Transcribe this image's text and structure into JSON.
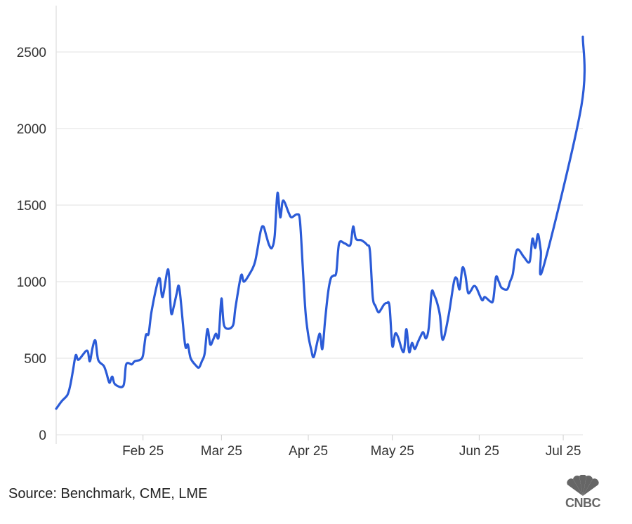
{
  "chart_data": {
    "type": "line",
    "ylim": [
      0,
      2600
    ],
    "yticks": [
      "0",
      "500",
      "1000",
      "1500",
      "2000",
      "2500"
    ],
    "xticks": [
      "Feb 25",
      "Mar 25",
      "Apr 25",
      "May 25",
      "Jun 25",
      "Jul 25"
    ],
    "xlim": [
      "2025-01-01",
      "2025-07-08"
    ],
    "grid": true,
    "series": [
      {
        "color": "#2b5bd7",
        "points": [
          [
            "2025-01-01",
            170
          ],
          [
            "2025-01-03",
            220
          ],
          [
            "2025-01-05",
            260
          ],
          [
            "2025-01-06",
            320
          ],
          [
            "2025-01-07",
            420
          ],
          [
            "2025-01-08",
            520
          ],
          [
            "2025-01-09",
            490
          ],
          [
            "2025-01-12",
            550
          ],
          [
            "2025-01-13",
            480
          ],
          [
            "2025-01-14",
            570
          ],
          [
            "2025-01-15",
            615
          ],
          [
            "2025-01-16",
            490
          ],
          [
            "2025-01-18",
            450
          ],
          [
            "2025-01-19",
            400
          ],
          [
            "2025-01-20",
            340
          ],
          [
            "2025-01-21",
            380
          ],
          [
            "2025-01-22",
            330
          ],
          [
            "2025-01-25",
            320
          ],
          [
            "2025-01-26",
            460
          ],
          [
            "2025-01-28",
            460
          ],
          [
            "2025-01-29",
            480
          ],
          [
            "2025-01-31",
            490
          ],
          [
            "2025-02-01",
            520
          ],
          [
            "2025-02-02",
            650
          ],
          [
            "2025-02-03",
            660
          ],
          [
            "2025-02-04",
            800
          ],
          [
            "2025-02-06",
            980
          ],
          [
            "2025-02-07",
            1020
          ],
          [
            "2025-02-08",
            900
          ],
          [
            "2025-02-10",
            1080
          ],
          [
            "2025-02-11",
            800
          ],
          [
            "2025-02-12",
            840
          ],
          [
            "2025-02-13",
            920
          ],
          [
            "2025-02-14",
            955
          ],
          [
            "2025-02-16",
            590
          ],
          [
            "2025-02-17",
            590
          ],
          [
            "2025-02-18",
            500
          ],
          [
            "2025-02-20",
            450
          ],
          [
            "2025-02-21",
            440
          ],
          [
            "2025-02-22",
            480
          ],
          [
            "2025-02-23",
            530
          ],
          [
            "2025-02-24",
            690
          ],
          [
            "2025-02-25",
            590
          ],
          [
            "2025-02-26",
            620
          ],
          [
            "2025-02-27",
            660
          ],
          [
            "2025-02-28",
            640
          ],
          [
            "2025-03-01",
            890
          ],
          [
            "2025-03-02",
            710
          ],
          [
            "2025-03-05",
            710
          ],
          [
            "2025-03-06",
            830
          ],
          [
            "2025-03-08",
            1040
          ],
          [
            "2025-03-09",
            1000
          ],
          [
            "2025-03-11",
            1050
          ],
          [
            "2025-03-13",
            1130
          ],
          [
            "2025-03-15",
            1330
          ],
          [
            "2025-03-16",
            1360
          ],
          [
            "2025-03-17",
            1300
          ],
          [
            "2025-03-18",
            1240
          ],
          [
            "2025-03-19",
            1220
          ],
          [
            "2025-03-20",
            1300
          ],
          [
            "2025-03-21",
            1580
          ],
          [
            "2025-03-22",
            1420
          ],
          [
            "2025-03-23",
            1530
          ],
          [
            "2025-03-25",
            1450
          ],
          [
            "2025-03-26",
            1420
          ],
          [
            "2025-03-28",
            1440
          ],
          [
            "2025-03-29",
            1400
          ],
          [
            "2025-03-30",
            1100
          ],
          [
            "2025-03-31",
            800
          ],
          [
            "2025-04-01",
            650
          ],
          [
            "2025-04-02",
            560
          ],
          [
            "2025-04-03",
            510
          ],
          [
            "2025-04-05",
            660
          ],
          [
            "2025-04-06",
            560
          ],
          [
            "2025-04-07",
            750
          ],
          [
            "2025-04-08",
            920
          ],
          [
            "2025-04-09",
            1020
          ],
          [
            "2025-04-10",
            1040
          ],
          [
            "2025-04-11",
            1060
          ],
          [
            "2025-04-12",
            1250
          ],
          [
            "2025-04-14",
            1250
          ],
          [
            "2025-04-16",
            1240
          ],
          [
            "2025-04-17",
            1360
          ],
          [
            "2025-04-18",
            1280
          ],
          [
            "2025-04-20",
            1270
          ],
          [
            "2025-04-22",
            1240
          ],
          [
            "2025-04-23",
            1200
          ],
          [
            "2025-04-24",
            900
          ],
          [
            "2025-04-25",
            840
          ],
          [
            "2025-04-26",
            800
          ],
          [
            "2025-04-27",
            820
          ],
          [
            "2025-04-28",
            850
          ],
          [
            "2025-04-29",
            860
          ],
          [
            "2025-04-30",
            840
          ],
          [
            "2025-05-01",
            580
          ],
          [
            "2025-05-02",
            660
          ],
          [
            "2025-05-03",
            640
          ],
          [
            "2025-05-05",
            540
          ],
          [
            "2025-05-06",
            690
          ],
          [
            "2025-05-07",
            540
          ],
          [
            "2025-05-08",
            600
          ],
          [
            "2025-05-09",
            560
          ],
          [
            "2025-05-10",
            600
          ],
          [
            "2025-05-11",
            640
          ],
          [
            "2025-05-12",
            670
          ],
          [
            "2025-05-13",
            630
          ],
          [
            "2025-05-14",
            700
          ],
          [
            "2025-05-15",
            930
          ],
          [
            "2025-05-16",
            910
          ],
          [
            "2025-05-17",
            860
          ],
          [
            "2025-05-18",
            780
          ],
          [
            "2025-05-19",
            620
          ],
          [
            "2025-05-21",
            770
          ],
          [
            "2025-05-23",
            1000
          ],
          [
            "2025-05-24",
            1020
          ],
          [
            "2025-05-25",
            950
          ],
          [
            "2025-05-26",
            1090
          ],
          [
            "2025-05-27",
            1050
          ],
          [
            "2025-05-28",
            930
          ],
          [
            "2025-05-29",
            940
          ],
          [
            "2025-05-30",
            970
          ],
          [
            "2025-05-31",
            960
          ],
          [
            "2025-06-02",
            880
          ],
          [
            "2025-06-03",
            900
          ],
          [
            "2025-06-05",
            870
          ],
          [
            "2025-06-06",
            880
          ],
          [
            "2025-06-07",
            1030
          ],
          [
            "2025-06-08",
            1000
          ],
          [
            "2025-06-09",
            960
          ],
          [
            "2025-06-11",
            950
          ],
          [
            "2025-06-12",
            1000
          ],
          [
            "2025-06-13",
            1050
          ],
          [
            "2025-06-14",
            1180
          ],
          [
            "2025-06-15",
            1210
          ],
          [
            "2025-06-17",
            1160
          ],
          [
            "2025-06-19",
            1130
          ],
          [
            "2025-06-20",
            1280
          ],
          [
            "2025-06-21",
            1220
          ],
          [
            "2025-06-22",
            1310
          ],
          [
            "2025-06-23",
            1200
          ],
          [
            "2025-06-24",
            1100
          ],
          [
            "2025-06-25",
            2150
          ],
          [
            "2025-06-25",
            2600
          ]
        ]
      }
    ]
  },
  "source_text": "Source: Benchmark, CME, LME",
  "logo": {
    "text": "CNBC",
    "icon": "peacock-logo-icon"
  }
}
